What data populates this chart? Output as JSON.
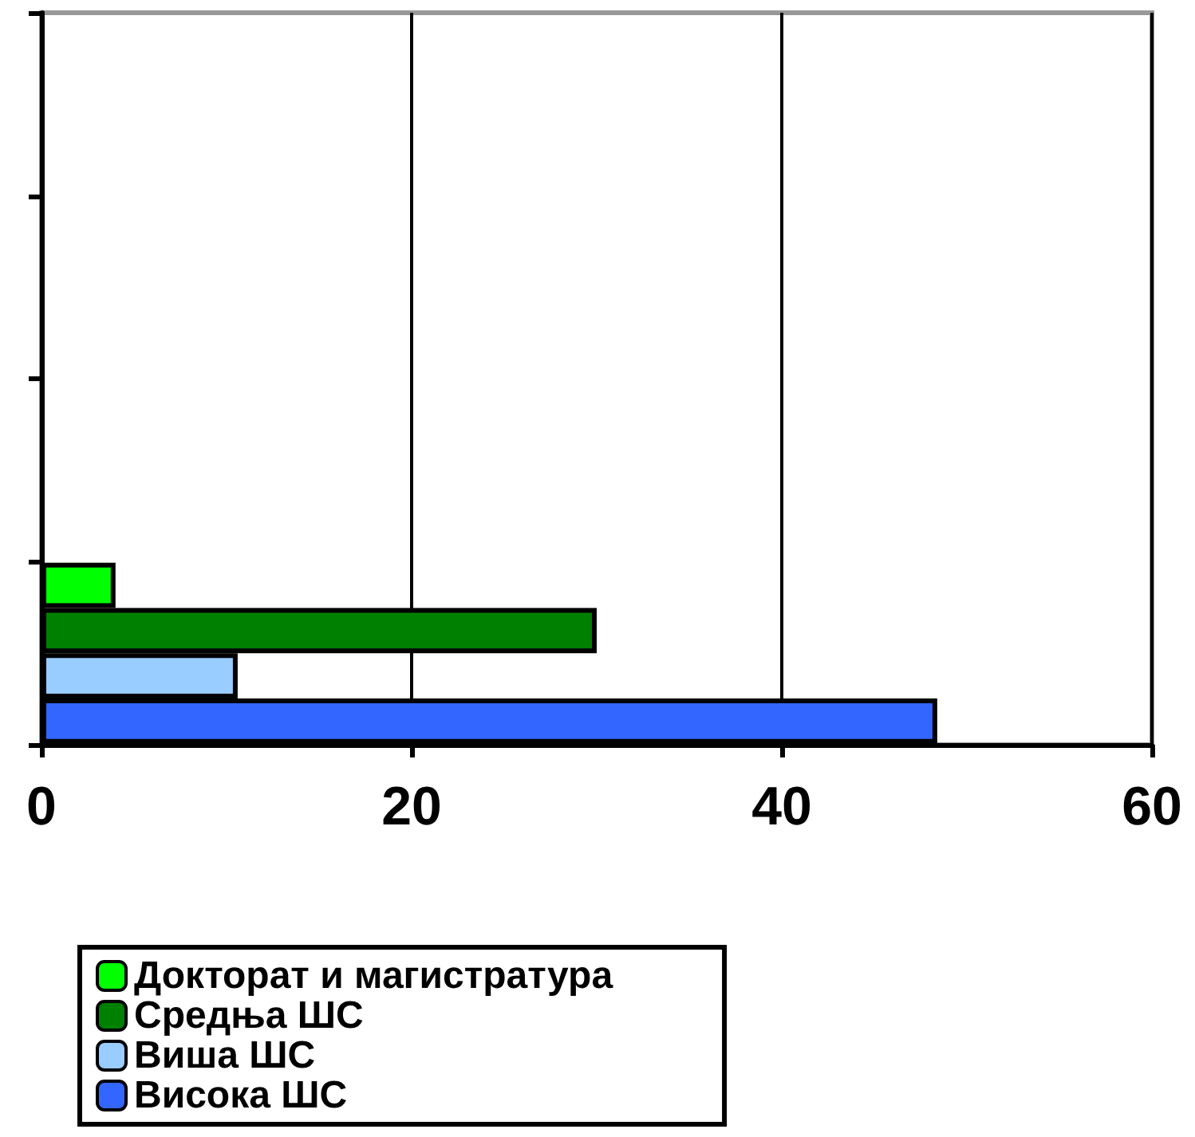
{
  "chart_data": {
    "type": "bar",
    "orientation": "horizontal",
    "categories": [
      null,
      null,
      null,
      null
    ],
    "series": [
      {
        "name": "Докторат и магистратура",
        "color": "#00ff00",
        "values": [
          null,
          null,
          null,
          4
        ]
      },
      {
        "name": "Средња ШС",
        "color": "#008000",
        "values": [
          null,
          null,
          null,
          30
        ]
      },
      {
        "name": "Виша ШС",
        "color": "#99ccff",
        "values": [
          null,
          null,
          null,
          10.6
        ]
      },
      {
        "name": "Висока ШС",
        "color": "#3366ff",
        "values": [
          null,
          null,
          null,
          48.4
        ]
      }
    ],
    "xlim": [
      0,
      60
    ],
    "xticks": [
      0,
      20,
      40,
      60
    ],
    "grid": "x",
    "legend": "bottom"
  }
}
